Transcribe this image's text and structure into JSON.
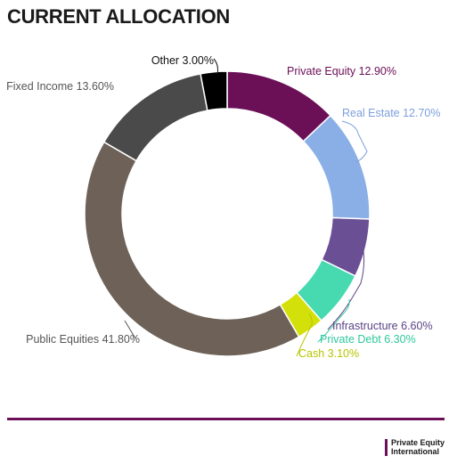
{
  "header": {
    "title": "CURRENT ALLOCATION"
  },
  "brand": {
    "line1": "Private Equity",
    "line2": "International"
  },
  "colors": {
    "accent": "#6b0f57"
  },
  "chart_data": {
    "type": "pie",
    "title": "CURRENT ALLOCATION",
    "unit": "%",
    "slices": [
      {
        "label": "Private Equity 12.90%",
        "value": 12.9,
        "color": "#6b0f57",
        "label_color": "#6b0f57"
      },
      {
        "label": "Real Estate 12.70%",
        "value": 12.7,
        "color": "#8aaee6",
        "label_color": "#7d9fdc"
      },
      {
        "label": "Infrastructure 6.60%",
        "value": 6.6,
        "color": "#6a4f94",
        "label_color": "#5b4386"
      },
      {
        "label": "Private Debt 6.30%",
        "value": 6.3,
        "color": "#47d9b0",
        "label_color": "#2fc89c"
      },
      {
        "label": "Cash 3.10%",
        "value": 3.1,
        "color": "#d3e00a",
        "label_color": "#b9c400"
      },
      {
        "label": "Public Equities 41.80%",
        "value": 41.8,
        "color": "#6e6258",
        "label_color": "#555555"
      },
      {
        "label": "Fixed Income 13.60%",
        "value": 13.6,
        "color": "#4a4a4a",
        "label_color": "#555555"
      },
      {
        "label": "Other 3.00%",
        "value": 3.0,
        "color": "#000000",
        "label_color": "#111111"
      }
    ]
  }
}
